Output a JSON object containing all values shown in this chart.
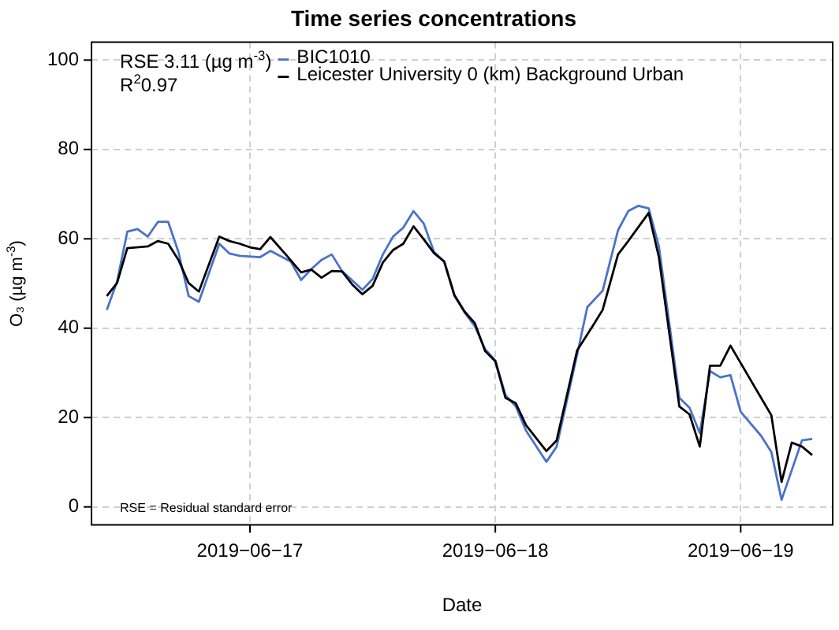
{
  "chart_data": {
    "type": "line",
    "title": "Time series concentrations",
    "xlabel": "Date",
    "ylabel": "O₃ (µg m$^{-3}$)",
    "annotations": [
      "RSE 3.11 (µg m$^{-3}$)",
      "R$^{2}$0.97",
      "RSE = Residual standard error"
    ],
    "xlim": [
      "2019-06-16T08:30",
      "2019-06-19T09:00"
    ],
    "xticks": [
      {
        "value": "2019-06-17",
        "label": "2019−06−17"
      },
      {
        "value": "2019-06-18",
        "label": "2019−06−18"
      },
      {
        "value": "2019-06-19",
        "label": "2019−06−19"
      }
    ],
    "ylim": [
      -4,
      104
    ],
    "yticks": [
      0,
      20,
      40,
      60,
      80,
      100
    ],
    "grid": true,
    "legend": "top left",
    "marker": "none",
    "line_style": "solid",
    "series": [
      {
        "name": "BIC1010",
        "color": "#4a72c8",
        "x": [
          "2019-06-16T10:00",
          "2019-06-16T11:00",
          "2019-06-16T12:00",
          "2019-06-16T13:00",
          "2019-06-16T14:00",
          "2019-06-16T15:00",
          "2019-06-16T16:00",
          "2019-06-16T17:00",
          "2019-06-16T18:00",
          "2019-06-16T19:00",
          "2019-06-16T21:00",
          "2019-06-16T22:00",
          "2019-06-16T23:00",
          "2019-06-17T01:00",
          "2019-06-17T02:00",
          "2019-06-17T04:00",
          "2019-06-17T05:00",
          "2019-06-17T06:00",
          "2019-06-17T07:00",
          "2019-06-17T08:00",
          "2019-06-17T09:00",
          "2019-06-17T10:00",
          "2019-06-17T11:00",
          "2019-06-17T12:00",
          "2019-06-17T13:00",
          "2019-06-17T14:00",
          "2019-06-17T15:00",
          "2019-06-17T16:00",
          "2019-06-17T17:00",
          "2019-06-17T18:00",
          "2019-06-17T19:00",
          "2019-06-17T20:00",
          "2019-06-17T21:00",
          "2019-06-17T22:00",
          "2019-06-17T23:00",
          "2019-06-18T00:00",
          "2019-06-18T01:00",
          "2019-06-18T02:00",
          "2019-06-18T03:00",
          "2019-06-18T05:00",
          "2019-06-18T06:00",
          "2019-06-18T08:00",
          "2019-06-18T09:00",
          "2019-06-18T10:30",
          "2019-06-18T12:00",
          "2019-06-18T13:00",
          "2019-06-18T14:00",
          "2019-06-18T15:00",
          "2019-06-18T16:00",
          "2019-06-18T18:00",
          "2019-06-18T19:00",
          "2019-06-18T20:00",
          "2019-06-18T21:00",
          "2019-06-18T22:00",
          "2019-06-18T23:00",
          "2019-06-19T00:00",
          "2019-06-19T02:00",
          "2019-06-19T03:00",
          "2019-06-19T04:00",
          "2019-06-19T06:00",
          "2019-06-19T07:00"
        ],
        "values": [
          44.1,
          50.4,
          61.6,
          62.2,
          60.5,
          63.8,
          63.8,
          57.1,
          47.2,
          45.9,
          58.9,
          56.7,
          56.2,
          55.9,
          57.3,
          54.9,
          50.8,
          53.2,
          55.3,
          56.5,
          52.8,
          50.7,
          48.6,
          51.0,
          56.5,
          60.5,
          62.5,
          66.2,
          63.4,
          57.1,
          54.9,
          47.2,
          43.5,
          40.4,
          35.3,
          32.8,
          25.0,
          22.5,
          17.1,
          10.1,
          13.5,
          34.1,
          44.7,
          48.4,
          61.9,
          66.2,
          67.4,
          66.8,
          58.3,
          24.4,
          22.2,
          16.5,
          30.4,
          29.0,
          29.5,
          21.3,
          15.9,
          12.3,
          1.6,
          14.9,
          15.2
        ]
      },
      {
        "name": "Leicester University 0 (km) Background Urban",
        "color": "#000000",
        "x": [
          "2019-06-16T10:00",
          "2019-06-16T11:00",
          "2019-06-16T12:00",
          "2019-06-16T14:00",
          "2019-06-16T15:00",
          "2019-06-16T16:00",
          "2019-06-16T17:00",
          "2019-06-16T18:00",
          "2019-06-16T19:00",
          "2019-06-16T21:00",
          "2019-06-16T22:00",
          "2019-06-16T23:00",
          "2019-06-17T00:00",
          "2019-06-17T01:00",
          "2019-06-17T02:00",
          "2019-06-17T03:30",
          "2019-06-17T05:00",
          "2019-06-17T06:00",
          "2019-06-17T07:00",
          "2019-06-17T08:00",
          "2019-06-17T09:00",
          "2019-06-17T10:00",
          "2019-06-17T11:00",
          "2019-06-17T12:00",
          "2019-06-17T13:00",
          "2019-06-17T14:00",
          "2019-06-17T15:00",
          "2019-06-17T16:00",
          "2019-06-17T17:00",
          "2019-06-17T18:00",
          "2019-06-17T19:00",
          "2019-06-17T20:00",
          "2019-06-17T21:00",
          "2019-06-17T22:00",
          "2019-06-17T23:00",
          "2019-06-18T00:00",
          "2019-06-18T01:00",
          "2019-06-18T02:00",
          "2019-06-18T03:00",
          "2019-06-18T05:00",
          "2019-06-18T06:00",
          "2019-06-18T08:00",
          "2019-06-18T09:30",
          "2019-06-18T10:30",
          "2019-06-18T12:00",
          "2019-06-18T13:00",
          "2019-06-18T15:00",
          "2019-06-18T16:00",
          "2019-06-18T18:00",
          "2019-06-18T19:00",
          "2019-06-18T20:00",
          "2019-06-18T21:00",
          "2019-06-18T22:00",
          "2019-06-18T23:00",
          "2019-06-19T03:00",
          "2019-06-19T04:00",
          "2019-06-19T05:00",
          "2019-06-19T06:00",
          "2019-06-19T07:00"
        ],
        "values": [
          47.2,
          50.1,
          57.9,
          58.3,
          59.5,
          58.9,
          55.3,
          50.1,
          48.2,
          60.5,
          59.5,
          58.9,
          58.1,
          57.7,
          60.4,
          56.5,
          52.5,
          53.1,
          51.3,
          52.8,
          52.7,
          49.8,
          47.6,
          49.5,
          54.7,
          57.5,
          58.9,
          62.8,
          59.9,
          56.8,
          54.9,
          47.4,
          43.7,
          41.1,
          34.9,
          32.6,
          24.4,
          23.2,
          18.3,
          12.5,
          14.9,
          35.0,
          40.4,
          44.1,
          56.5,
          59.5,
          65.8,
          55.9,
          22.5,
          20.7,
          13.5,
          31.6,
          31.6,
          36.1,
          20.5,
          5.6,
          14.4,
          13.5,
          11.6
        ]
      }
    ]
  }
}
